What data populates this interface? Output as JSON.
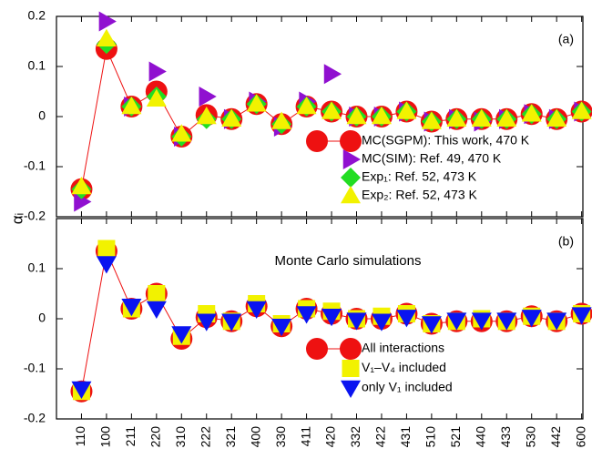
{
  "chart_data": [
    {
      "type": "scatter",
      "ylabel": "αᵢ",
      "panel_label": "(a)",
      "ylim": [
        -0.2,
        0.2
      ],
      "yticks": [
        -0.2,
        -0.1,
        0,
        0.1,
        0.2
      ],
      "legend": "right",
      "series": [
        {
          "name": "MC(SGPM): This work, 470 K",
          "color": "#ee1111",
          "marker": "circle",
          "line": true,
          "values": [
            -0.145,
            0.135,
            0.02,
            0.05,
            -0.04,
            0.003,
            -0.005,
            0.025,
            -0.015,
            0.02,
            0.01,
            0.0,
            0.0,
            0.01,
            -0.01,
            -0.005,
            -0.005,
            -0.005,
            0.005,
            -0.005,
            0.01
          ]
        },
        {
          "name": "MC(SIM): Ref. 49, 470 K",
          "color": "#9010d0",
          "marker": "triangle-right",
          "line": false,
          "values": [
            -0.17,
            0.19,
            0.02,
            0.09,
            -0.04,
            0.04,
            -0.005,
            0.03,
            -0.02,
            0.03,
            0.085,
            0.0,
            0.0,
            0.01,
            -0.01,
            -0.005,
            -0.01,
            -0.005,
            0.005,
            -0.005,
            0.01
          ]
        },
        {
          "name": "Exp₁: Ref. 52, 473 K",
          "color": "#22dd22",
          "marker": "diamond",
          "line": false,
          "values": [
            -0.145,
            0.145,
            0.02,
            0.04,
            -0.04,
            -0.005,
            -0.005,
            0.025,
            -0.015,
            0.02,
            0.01,
            0.0,
            0.0,
            0.01,
            -0.01,
            -0.005,
            -0.005,
            -0.005,
            0.005,
            -0.005,
            0.01
          ]
        },
        {
          "name": "Exp₂: Ref. 52, 473 K",
          "color": "#f2f200",
          "marker": "triangle-up",
          "line": false,
          "values": [
            -0.14,
            0.155,
            0.02,
            0.035,
            -0.035,
            0.0,
            -0.005,
            0.025,
            -0.01,
            0.02,
            0.01,
            0.0,
            0.0,
            0.01,
            -0.01,
            -0.005,
            -0.005,
            -0.005,
            0.005,
            -0.005,
            0.01
          ]
        }
      ]
    },
    {
      "type": "scatter",
      "panel_label": "(b)",
      "annotation": "Monte Carlo simulations",
      "categories": [
        "110",
        "100",
        "211",
        "220",
        "310",
        "222",
        "321",
        "400",
        "330",
        "411",
        "420",
        "332",
        "422",
        "431",
        "510",
        "521",
        "440",
        "433",
        "530",
        "442",
        "600"
      ],
      "ylim": [
        -0.2,
        0.2
      ],
      "yticks": [
        -0.2,
        -0.1,
        0,
        0.1
      ],
      "legend": "right",
      "series": [
        {
          "name": "All interactions",
          "color": "#ee1111",
          "marker": "circle",
          "line": true,
          "values": [
            -0.145,
            0.135,
            0.02,
            0.05,
            -0.04,
            0.003,
            -0.005,
            0.025,
            -0.015,
            0.02,
            0.01,
            0.0,
            0.0,
            0.01,
            -0.01,
            -0.005,
            -0.005,
            -0.005,
            0.005,
            -0.005,
            0.01
          ]
        },
        {
          "name": "V₁–V₄ included",
          "color": "#f2f200",
          "marker": "square",
          "line": false,
          "values": [
            -0.145,
            0.14,
            0.02,
            0.05,
            -0.035,
            0.01,
            -0.005,
            0.03,
            -0.01,
            0.02,
            0.015,
            0.0,
            0.005,
            0.01,
            -0.01,
            -0.005,
            0.0,
            -0.005,
            0.005,
            -0.005,
            0.01
          ]
        },
        {
          "name": "only V₁ included",
          "color": "#0a14f0",
          "marker": "triangle-down",
          "line": false,
          "values": [
            -0.14,
            0.11,
            0.025,
            0.02,
            -0.03,
            -0.005,
            -0.005,
            0.02,
            -0.015,
            0.01,
            0.005,
            -0.003,
            -0.005,
            0.003,
            -0.01,
            -0.003,
            -0.003,
            -0.003,
            0.003,
            -0.003,
            0.008
          ]
        }
      ]
    }
  ]
}
